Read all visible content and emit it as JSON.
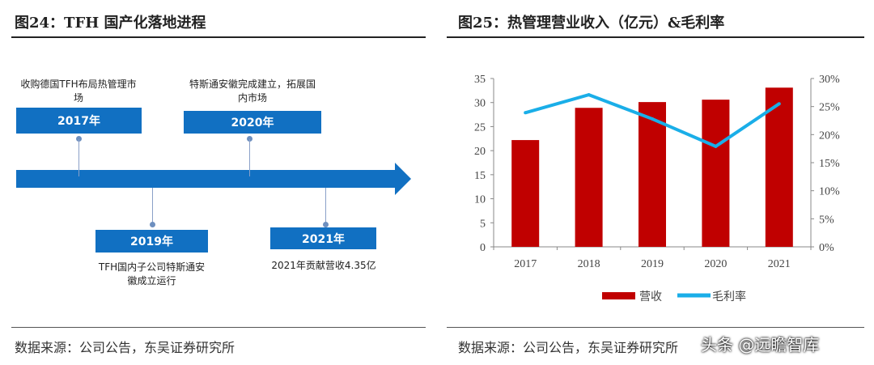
{
  "left": {
    "title": "图24：TFH 国产化落地进程",
    "source": "数据来源：公司公告，东吴证券研究所",
    "timeline": [
      {
        "year": "2017年",
        "note": "收购德国TFH布局热管理市场"
      },
      {
        "year": "2019年",
        "note": "TFH国内子公司特斯通安徽成立运行"
      },
      {
        "year": "2020年",
        "note": "特斯通安徽完成建立，拓展国内市场"
      },
      {
        "year": "2021年",
        "note": "2021年贡献营收4.35亿"
      }
    ]
  },
  "right": {
    "title": "图25：热管理营业收入（亿元）&毛利率",
    "source": "数据来源：公司公告，东吴证券研究所"
  },
  "watermark": "头条 @远瞻智库",
  "chart_data": {
    "type": "bar+line",
    "categories": [
      "2017",
      "2018",
      "2019",
      "2020",
      "2021"
    ],
    "series": [
      {
        "name": "营收",
        "type": "bar",
        "axis": "left",
        "color": "#c00000",
        "values": [
          22.2,
          28.9,
          30.1,
          30.6,
          33.1
        ]
      },
      {
        "name": "毛利率",
        "type": "line",
        "axis": "right",
        "color": "#1aaee8",
        "values": [
          0.239,
          0.271,
          0.228,
          0.179,
          0.255
        ]
      }
    ],
    "yleft": {
      "ylim": [
        0,
        35
      ],
      "ticks": [
        "0",
        "5",
        "10",
        "15",
        "20",
        "25",
        "30",
        "35"
      ]
    },
    "yright": {
      "ylim": [
        0,
        0.3
      ],
      "ticks": [
        "0%",
        "5%",
        "10%",
        "15%",
        "20%",
        "25%",
        "30%"
      ]
    },
    "legend": "bottom",
    "grid": false
  }
}
